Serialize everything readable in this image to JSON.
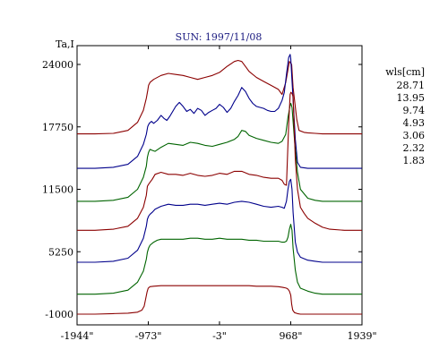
{
  "chart_data": {
    "type": "line",
    "title": "SUN: 1997/11/08",
    "ylabel": "Ta,I",
    "xlabel": "",
    "xlim": [
      -1944,
      1939
    ],
    "ylim": [
      -1000,
      30250
    ],
    "x_ticks": [
      {
        "value": -1944,
        "label": "-1944\""
      },
      {
        "value": -973,
        "label": "-973\""
      },
      {
        "value": -3,
        "label": "-3\""
      },
      {
        "value": 968,
        "label": "968\""
      },
      {
        "value": 1939,
        "label": "1939\""
      }
    ],
    "y_ticks": [
      {
        "value": 24000,
        "label": "24000"
      },
      {
        "value": 17750,
        "label": "17750"
      },
      {
        "value": 11500,
        "label": "11500"
      },
      {
        "value": 5250,
        "label": "5250"
      },
      {
        "value": -1000,
        "label": "-1000"
      }
    ],
    "grid": false,
    "legend": {
      "title": "wls[cm]",
      "placement": "right",
      "entries": [
        "28.71",
        "13.95",
        "9.74",
        "4.93",
        "3.06",
        "2.32",
        "1.83"
      ]
    },
    "series": [
      {
        "name": "28.71",
        "color": "#8b0000",
        "x": [
          -1944,
          -1700,
          -1450,
          -1250,
          -1120,
          -1040,
          -1000,
          -980,
          -970,
          -950,
          -900,
          -800,
          -700,
          -600,
          -500,
          -400,
          -300,
          -200,
          -100,
          -3,
          100,
          200,
          250,
          300,
          350,
          400,
          500,
          600,
          700,
          800,
          850,
          900,
          950,
          980,
          1000,
          1050,
          1080,
          1150,
          1200,
          1300,
          1400,
          1500,
          1700,
          1939
        ],
        "y": [
          17050,
          17050,
          17100,
          17400,
          18200,
          19400,
          20600,
          21400,
          21900,
          22200,
          22500,
          22900,
          23100,
          23000,
          22900,
          22700,
          22500,
          22700,
          22900,
          23200,
          23800,
          24300,
          24400,
          24300,
          23800,
          23300,
          22700,
          22300,
          21900,
          21500,
          21000,
          22200,
          24300,
          24000,
          21700,
          18500,
          17400,
          17200,
          17150,
          17100,
          17050,
          17050,
          17050,
          17050
        ]
      },
      {
        "name": "13.95",
        "color": "#00008b",
        "x": [
          -1944,
          -1700,
          -1450,
          -1250,
          -1120,
          -1040,
          -1000,
          -980,
          -960,
          -930,
          -900,
          -850,
          -800,
          -760,
          -720,
          -680,
          -600,
          -550,
          -500,
          -450,
          -400,
          -350,
          -300,
          -250,
          -200,
          -150,
          -100,
          -50,
          -3,
          50,
          100,
          150,
          200,
          250,
          300,
          350,
          400,
          450,
          500,
          550,
          600,
          650,
          700,
          750,
          800,
          850,
          880,
          910,
          940,
          960,
          968,
          980,
          1000,
          1030,
          1060,
          1100,
          1200,
          1300,
          1400,
          1500,
          1700,
          1939
        ],
        "y": [
          13600,
          13600,
          13700,
          14000,
          14800,
          16000,
          17000,
          17800,
          18100,
          18300,
          18100,
          18400,
          18900,
          18600,
          18400,
          18800,
          19800,
          20200,
          19800,
          19300,
          19500,
          19100,
          19600,
          19400,
          18900,
          19200,
          19400,
          19600,
          20000,
          19700,
          19200,
          19600,
          20300,
          20900,
          21700,
          21300,
          20600,
          20100,
          19800,
          19700,
          19600,
          19400,
          19300,
          19300,
          19600,
          20400,
          21200,
          23000,
          24700,
          25000,
          24600,
          23000,
          20500,
          16500,
          14200,
          13700,
          13600,
          13600,
          13600,
          13600,
          13600,
          13600
        ]
      },
      {
        "name": "9.74",
        "color": "#006400",
        "x": [
          -1944,
          -1700,
          -1450,
          -1250,
          -1120,
          -1040,
          -1000,
          -985,
          -970,
          -950,
          -920,
          -880,
          -800,
          -700,
          -600,
          -500,
          -400,
          -300,
          -200,
          -100,
          -3,
          100,
          200,
          250,
          300,
          350,
          400,
          500,
          600,
          700,
          800,
          850,
          900,
          930,
          960,
          970,
          985,
          1000,
          1020,
          1040,
          1060,
          1100,
          1200,
          1300,
          1400,
          1500,
          1700,
          1939
        ],
        "y": [
          10300,
          10300,
          10400,
          10700,
          11500,
          12700,
          13800,
          14700,
          15200,
          15500,
          15400,
          15300,
          15700,
          16100,
          16000,
          15900,
          16200,
          16100,
          15900,
          15800,
          16000,
          16200,
          16500,
          16800,
          17400,
          17300,
          16900,
          16600,
          16400,
          16200,
          16100,
          16300,
          17000,
          18700,
          19900,
          20100,
          19700,
          18300,
          16400,
          14700,
          13200,
          11500,
          10600,
          10400,
          10300,
          10300,
          10300,
          10300
        ]
      },
      {
        "name": "4.93",
        "color": "#8b0000",
        "x": [
          -1944,
          -1700,
          -1450,
          -1250,
          -1120,
          -1040,
          -1000,
          -985,
          -970,
          -950,
          -920,
          -880,
          -800,
          -700,
          -600,
          -500,
          -400,
          -300,
          -200,
          -100,
          -3,
          100,
          200,
          300,
          400,
          500,
          600,
          700,
          800,
          850,
          880,
          910,
          940,
          960,
          970,
          985,
          1000,
          1030,
          1060,
          1100,
          1150,
          1200,
          1300,
          1400,
          1500,
          1700,
          1939
        ],
        "y": [
          7400,
          7400,
          7500,
          7800,
          8600,
          9700,
          10900,
          11800,
          12000,
          12200,
          12500,
          13000,
          13200,
          13000,
          13000,
          12900,
          13100,
          12900,
          12800,
          12900,
          13100,
          13000,
          13300,
          13300,
          13000,
          12900,
          12700,
          12600,
          12600,
          12400,
          12000,
          11900,
          18000,
          21000,
          21200,
          21100,
          20800,
          14500,
          11500,
          9700,
          9100,
          8600,
          8100,
          7700,
          7500,
          7400,
          7400
        ]
      },
      {
        "name": "3.06",
        "color": "#00008b",
        "x": [
          -1944,
          -1700,
          -1450,
          -1250,
          -1120,
          -1040,
          -1000,
          -985,
          -970,
          -950,
          -920,
          -880,
          -800,
          -700,
          -600,
          -500,
          -400,
          -300,
          -200,
          -100,
          -3,
          100,
          200,
          300,
          400,
          500,
          600,
          700,
          800,
          850,
          880,
          910,
          930,
          950,
          968,
          985,
          1000,
          1030,
          1060,
          1100,
          1200,
          1300,
          1400,
          1500,
          1700,
          1939
        ],
        "y": [
          4200,
          4200,
          4300,
          4600,
          5400,
          6600,
          7800,
          8500,
          8800,
          9000,
          9200,
          9500,
          9800,
          10000,
          9900,
          9900,
          10000,
          10000,
          9900,
          10000,
          10100,
          10000,
          10200,
          10300,
          10200,
          10000,
          9800,
          9700,
          9800,
          9700,
          9600,
          10300,
          11500,
          12300,
          12500,
          11500,
          9200,
          6200,
          5200,
          4700,
          4400,
          4300,
          4200,
          4200,
          4200,
          4200
        ]
      },
      {
        "name": "2.32",
        "color": "#006400",
        "x": [
          -1944,
          -1700,
          -1450,
          -1250,
          -1120,
          -1040,
          -1000,
          -985,
          -970,
          -950,
          -900,
          -850,
          -800,
          -700,
          -600,
          -500,
          -400,
          -300,
          -200,
          -100,
          -3,
          100,
          200,
          300,
          400,
          500,
          600,
          700,
          800,
          850,
          880,
          910,
          930,
          950,
          968,
          985,
          1000,
          1030,
          1060,
          1100,
          1200,
          1300,
          1400,
          1500,
          1700,
          1939
        ],
        "y": [
          1000,
          1000,
          1100,
          1400,
          2200,
          3300,
          4500,
          5200,
          5600,
          5900,
          6200,
          6400,
          6500,
          6500,
          6500,
          6500,
          6600,
          6600,
          6500,
          6500,
          6600,
          6500,
          6500,
          6500,
          6400,
          6400,
          6300,
          6300,
          6300,
          6200,
          6200,
          6300,
          6700,
          7500,
          8000,
          7400,
          5600,
          3400,
          2200,
          1600,
          1300,
          1100,
          1000,
          1000,
          1000,
          1000
        ]
      },
      {
        "name": "1.83",
        "color": "#8b0000",
        "x": [
          -1944,
          -1700,
          -1450,
          -1250,
          -1120,
          -1060,
          -1030,
          -1010,
          -990,
          -975,
          -950,
          -900,
          -800,
          -700,
          -600,
          -500,
          -400,
          -300,
          -200,
          -100,
          -3,
          100,
          200,
          300,
          400,
          500,
          600,
          700,
          800,
          850,
          880,
          910,
          930,
          950,
          968,
          980,
          995,
          1020,
          1060,
          1100,
          1200,
          1400,
          1939
        ],
        "y": [
          -1000,
          -1000,
          -950,
          -900,
          -800,
          -600,
          -200,
          500,
          1200,
          1600,
          1750,
          1800,
          1850,
          1850,
          1850,
          1850,
          1850,
          1850,
          1850,
          1850,
          1850,
          1850,
          1850,
          1850,
          1850,
          1800,
          1800,
          1800,
          1750,
          1700,
          1650,
          1600,
          1500,
          1300,
          900,
          0,
          -600,
          -850,
          -950,
          -1000,
          -1000,
          -1000,
          -1000
        ]
      }
    ]
  }
}
